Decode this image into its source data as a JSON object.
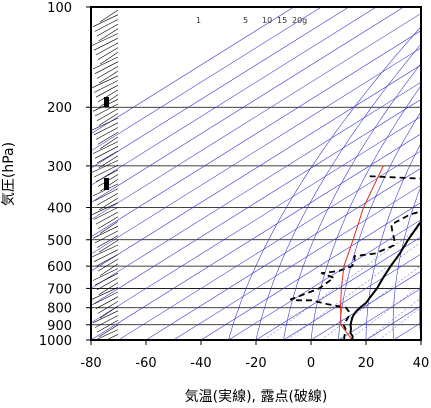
{
  "chart_data": {
    "type": "line",
    "title": "",
    "xlabel": "気温(実線), 露点(破線)",
    "ylabel": "気圧(hPa)",
    "xlim": [
      -80,
      40
    ],
    "ylim": [
      1000,
      100
    ],
    "y_scale": "log",
    "x_ticks": [
      "-80",
      "-60",
      "-40",
      "-20",
      "0",
      "20",
      "40"
    ],
    "y_ticks": [
      "100",
      "200",
      "300",
      "400",
      "500",
      "600",
      "700",
      "800",
      "900",
      "1000"
    ],
    "mixing_ratio_labels": [
      "1",
      "5",
      "10",
      "15",
      "20g"
    ],
    "series": [
      {
        "name": "",
        "style": "solid",
        "color": "#000000",
        "points": [
          [
            1000,
            15
          ],
          [
            975,
            13
          ],
          [
            950,
            10
          ],
          [
            925,
            8
          ],
          [
            900,
            5.5
          ],
          [
            875,
            3.5
          ],
          [
            850,
            1.5
          ],
          [
            825,
            0
          ],
          [
            800,
            -1
          ],
          [
            775,
            -1.5
          ],
          [
            750,
            -3
          ],
          [
            700,
            -6
          ],
          [
            650,
            -10
          ],
          [
            600,
            -14
          ],
          [
            550,
            -18
          ],
          [
            500,
            -23
          ],
          [
            450,
            -28
          ],
          [
            400,
            -33
          ],
          [
            350,
            -39
          ],
          [
            300,
            -45
          ],
          [
            250,
            -50
          ],
          [
            220,
            -53
          ],
          [
            200,
            -52
          ],
          [
            190,
            -52
          ],
          [
            170,
            -54
          ],
          [
            150,
            -55
          ],
          [
            130,
            -57
          ],
          [
            110,
            -60
          ],
          [
            100,
            -61
          ]
        ]
      },
      {
        "name": "",
        "style": "dashed",
        "color": "#000000",
        "points": [
          [
            1000,
            12
          ],
          [
            950,
            8
          ],
          [
            925,
            6
          ],
          [
            900,
            3
          ],
          [
            850,
            0
          ],
          [
            820,
            -3
          ],
          [
            800,
            -6
          ],
          [
            780,
            -15
          ],
          [
            760,
            -23
          ],
          [
            760,
            -28
          ],
          [
            755,
            -31
          ],
          [
            700,
            -27
          ],
          [
            650,
            -28
          ],
          [
            630,
            -35
          ],
          [
            620,
            -30
          ],
          [
            600,
            -28
          ],
          [
            580,
            -30
          ],
          [
            560,
            -33
          ],
          [
            550,
            -27
          ],
          [
            520,
            -25
          ],
          [
            500,
            -28
          ],
          [
            470,
            -34
          ],
          [
            450,
            -38
          ],
          [
            420,
            -37
          ],
          [
            400,
            -32
          ],
          [
            370,
            -43
          ],
          [
            350,
            -40
          ],
          [
            330,
            -45
          ],
          [
            322,
            -75
          ]
        ]
      },
      {
        "name": "",
        "style": "solid",
        "color": "#e8281e",
        "points": [
          [
            1000,
            15
          ],
          [
            900,
            2
          ],
          [
            800,
            -8
          ],
          [
            700,
            -19
          ],
          [
            600,
            -31
          ],
          [
            500,
            -43
          ],
          [
            400,
            -58
          ],
          [
            300,
            -75
          ]
        ]
      }
    ]
  }
}
